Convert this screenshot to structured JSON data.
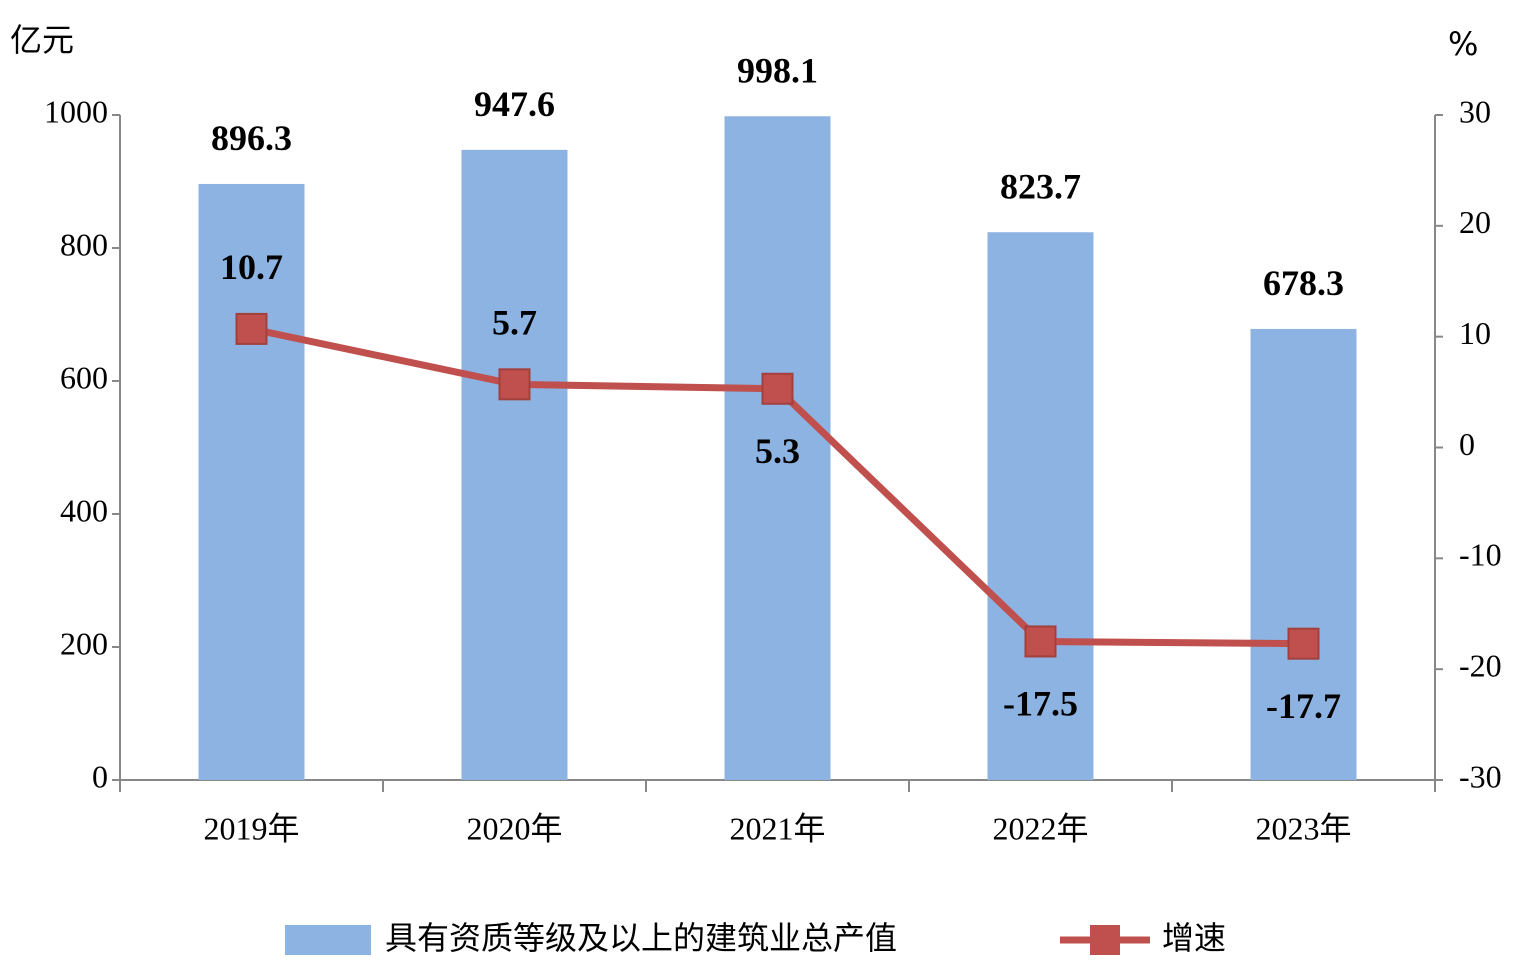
{
  "chart_data": {
    "type": "bar",
    "y_unit": "亿元",
    "y2_unit": "%",
    "categories": [
      "2019年",
      "2020年",
      "2021年",
      "2022年",
      "2023年"
    ],
    "series": [
      {
        "name": "具有资质等级及以上的建筑业总产值",
        "type": "bar",
        "color": "#8db3e2",
        "values": [
          896.3,
          947.6,
          998.1,
          823.7,
          678.3
        ]
      },
      {
        "name": "增速",
        "type": "line",
        "axis": "y2",
        "color": "#c0504d",
        "values": [
          10.7,
          5.7,
          5.3,
          -17.5,
          -17.7
        ]
      }
    ],
    "ylim": [
      0,
      1000
    ],
    "yticks": [
      0,
      200,
      400,
      600,
      800,
      1000
    ],
    "y2lim": [
      -30,
      30
    ],
    "y2ticks": [
      -30,
      -20,
      -10,
      0,
      10,
      20,
      30
    ],
    "legend": "bottom"
  }
}
